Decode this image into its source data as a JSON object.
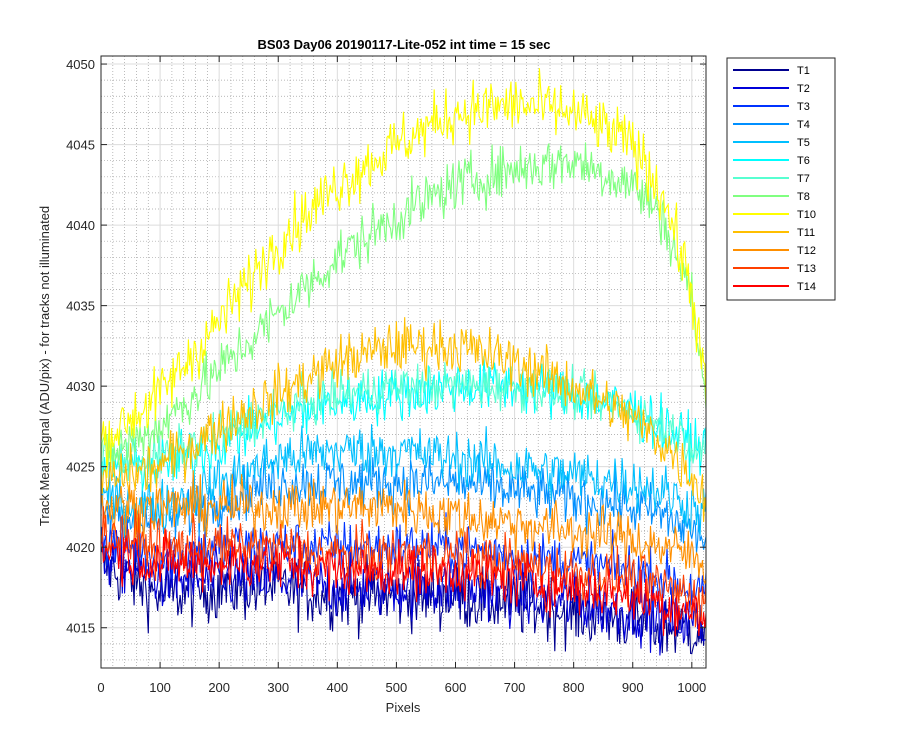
{
  "chart_data": {
    "type": "line",
    "title": "BS03 Day06 20190117-Lite-052 int time = 15 sec",
    "xlabel": "Pixels",
    "ylabel": "Track Mean Signal (ADU/pix) - for tracks not illuminated",
    "xlim": [
      0,
      1024
    ],
    "ylim": [
      4012.5,
      4050.5
    ],
    "x_ticks": [
      0,
      100,
      200,
      300,
      400,
      500,
      600,
      700,
      800,
      900,
      1000
    ],
    "y_ticks": [
      4015,
      4020,
      4025,
      4030,
      4035,
      4040,
      4045,
      4050
    ],
    "grid": "major and minor",
    "legend_position": "outside-right",
    "x": [
      0,
      100,
      200,
      300,
      400,
      500,
      600,
      700,
      800,
      900,
      950,
      1000,
      1024
    ],
    "series": [
      {
        "name": "T1",
        "color": "#00008f",
        "values": [
          4019,
          4017,
          4017.5,
          4017.5,
          4017,
          4017,
          4017,
          4016.5,
          4016,
          4015.5,
          4015,
          4015,
          4014.5
        ],
        "noise": 1.5
      },
      {
        "name": "T2",
        "color": "#0000d9",
        "values": [
          4019.5,
          4018,
          4018,
          4018,
          4017.5,
          4017.5,
          4017.5,
          4017,
          4016.5,
          4016,
          4015.5,
          4015.5,
          4015
        ],
        "noise": 1.3
      },
      {
        "name": "T3",
        "color": "#0033ff",
        "values": [
          4020.5,
          4019.5,
          4020,
          4020,
          4020,
          4020,
          4020,
          4019.5,
          4019,
          4018.5,
          4018,
          4017.5,
          4017
        ],
        "noise": 1.2
      },
      {
        "name": "T4",
        "color": "#008fff",
        "values": [
          4022,
          4021.5,
          4023,
          4024,
          4024,
          4024,
          4024,
          4023.5,
          4023,
          4022.5,
          4022,
          4021,
          4020.5
        ],
        "noise": 1.2
      },
      {
        "name": "T5",
        "color": "#00bfff",
        "values": [
          4023,
          4022.5,
          4024,
          4025.5,
          4026,
          4026,
          4025.5,
          4025,
          4024.5,
          4024,
          4023.5,
          4022.5,
          4022
        ],
        "noise": 1.2
      },
      {
        "name": "T6",
        "color": "#00ffff",
        "values": [
          4025,
          4025,
          4026.5,
          4028,
          4029,
          4029.5,
          4030,
          4030,
          4029.5,
          4028.5,
          4027.5,
          4026.5,
          4026
        ],
        "noise": 1.2
      },
      {
        "name": "T7",
        "color": "#57ffd1",
        "values": [
          4025.5,
          4025.5,
          4027,
          4028.5,
          4029.5,
          4030,
          4030,
          4030,
          4029.5,
          4028.5,
          4027.5,
          4026.5,
          4026
        ],
        "noise": 1.0
      },
      {
        "name": "T8",
        "color": "#80ff80",
        "values": [
          4025.5,
          4027.5,
          4031,
          4034.5,
          4038,
          4040.5,
          4042.5,
          4043.5,
          4044,
          4042.5,
          4040.5,
          4035.5,
          4029
        ],
        "noise": 1.2
      },
      {
        "name": "T10",
        "color": "#ffff00",
        "values": [
          4026.5,
          4029.5,
          4034,
          4039,
          4042.5,
          4045,
          4047,
          4047.5,
          4047,
          4045,
          4042,
          4036,
          4029.5
        ],
        "noise": 1.3
      },
      {
        "name": "T11",
        "color": "#ffbf00",
        "values": [
          4024,
          4025,
          4027.5,
          4029.5,
          4031.5,
          4032.5,
          4032.5,
          4031.5,
          4030,
          4028,
          4026.5,
          4024.5,
          4023
        ],
        "noise": 1.2
      },
      {
        "name": "T12",
        "color": "#ff8f00",
        "values": [
          4022.5,
          4022.5,
          4022.5,
          4022.5,
          4022.5,
          4022.5,
          4022,
          4021.5,
          4021,
          4020.5,
          4020,
          4019.5,
          4019
        ],
        "noise": 1.2
      },
      {
        "name": "T13",
        "color": "#ff4000",
        "values": [
          4021,
          4020,
          4020,
          4020,
          4019.5,
          4019.5,
          4019.5,
          4019,
          4018.5,
          4018,
          4017.5,
          4017,
          4016.5
        ],
        "noise": 1.2
      },
      {
        "name": "T14",
        "color": "#ff0000",
        "values": [
          4020,
          4019,
          4019,
          4019,
          4018.5,
          4018.5,
          4018.5,
          4018,
          4017.5,
          4017,
          4016.5,
          4016,
          4015.5
        ],
        "noise": 1.2
      }
    ]
  }
}
